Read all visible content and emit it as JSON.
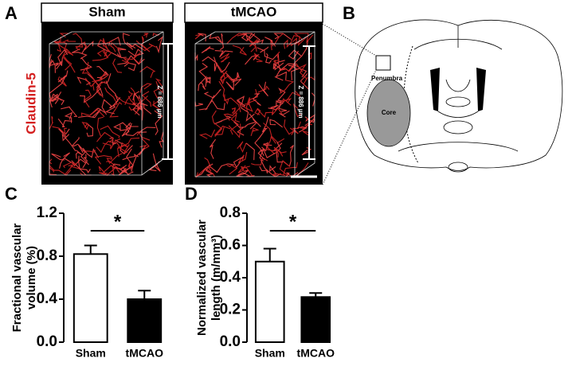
{
  "panels": {
    "a": {
      "letter": "A",
      "stain": "Claudin-5",
      "images": [
        {
          "title": "Sham",
          "depth": "Z = 886 µm"
        },
        {
          "title": "tMCAO",
          "depth": "Z = 886 µm"
        }
      ]
    },
    "b": {
      "letter": "B",
      "penumbra": "Penumbra",
      "core": "Core"
    }
  },
  "chart_data": [
    {
      "type": "bar",
      "letter": "C",
      "ylabel": [
        "Fractional vascular",
        "volume (%)"
      ],
      "categories": [
        "Sham",
        "tMCAO"
      ],
      "values": [
        0.82,
        0.4
      ],
      "errors": [
        0.08,
        0.08
      ],
      "colors": [
        "#ffffff",
        "#000000"
      ],
      "ylim": [
        0,
        1.2
      ],
      "yticks": [
        {
          "value": 0,
          "label": "0.0"
        },
        0.4,
        0.8,
        1.2
      ],
      "significance": "*"
    },
    {
      "type": "bar",
      "letter": "D",
      "ylabel": [
        "Normalized vascular",
        "length (m/mm³)"
      ],
      "categories": [
        "Sham",
        "tMCAO"
      ],
      "values": [
        0.5,
        0.28
      ],
      "errors": [
        0.08,
        0.025
      ],
      "colors": [
        "#ffffff",
        "#000000"
      ],
      "ylim": [
        0,
        0.8
      ],
      "yticks": [
        {
          "value": 0,
          "label": "0.0"
        },
        0.2,
        0.4,
        0.6,
        0.8
      ],
      "significance": "*"
    }
  ]
}
